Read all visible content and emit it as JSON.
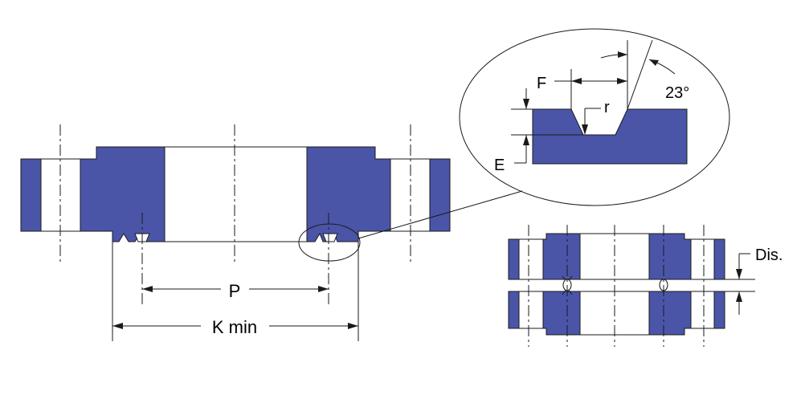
{
  "colors": {
    "section_fill": "#4a55a8",
    "line": "#1a1a1a",
    "background": "#ffffff"
  },
  "labels": {
    "p": "P",
    "k_min": "K min",
    "f": "F",
    "r": "r",
    "e": "E",
    "angle": "23°",
    "dis": "Dis."
  }
}
